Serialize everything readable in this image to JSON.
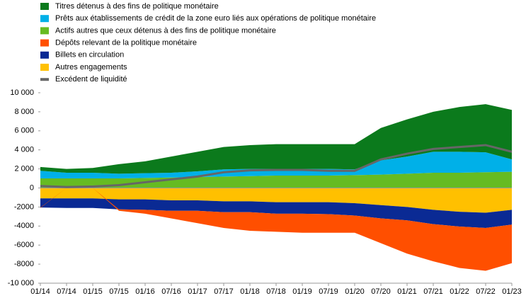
{
  "chart_data": {
    "type": "stacked-area",
    "x": [
      "01/14",
      "07/14",
      "01/15",
      "07/15",
      "01/16",
      "07/16",
      "01/17",
      "07/17",
      "01/18",
      "07/18",
      "01/19",
      "07/19",
      "01/20",
      "07/20",
      "01/21",
      "07/21",
      "01/22",
      "07/22",
      "01/23"
    ],
    "series": [
      {
        "name": "Titres détenus  à des fins de politique  monétaire",
        "color": "#0b7a1c",
        "values": [
          400,
          400,
          500,
          1000,
          1250,
          1700,
          2050,
          2350,
          2500,
          2600,
          2600,
          2600,
          2650,
          3400,
          3900,
          4200,
          4700,
          5050,
          5200
        ]
      },
      {
        "name": "Prêts aux établissements  de crédit de la zone euro liés aux opérations  de politique monétaire",
        "color": "#00b0e8",
        "values": [
          800,
          600,
          600,
          500,
          500,
          500,
          600,
          750,
          750,
          700,
          700,
          700,
          600,
          1500,
          1800,
          2200,
          2200,
          2100,
          1300
        ]
      },
      {
        "name": "Actifs autres que ceux détenus à des fins de politique monétaire",
        "color": "#66bb22",
        "values": [
          1000,
          1000,
          1000,
          1000,
          1050,
          1100,
          1150,
          1200,
          1250,
          1300,
          1300,
          1300,
          1350,
          1400,
          1500,
          1600,
          1600,
          1650,
          1700
        ]
      },
      {
        "name": "Dépôts  relevant de la politique monétaire",
        "color": "#ff4f00",
        "values": [
          -50,
          0,
          0,
          -150,
          -400,
          -800,
          -1300,
          -1650,
          -1950,
          -1900,
          -2000,
          -1950,
          -1800,
          -2600,
          -3500,
          -3900,
          -4350,
          -4500,
          -4050
        ]
      },
      {
        "name": "Billets en circulation",
        "color": "#0a2a94",
        "values": [
          -950,
          -1000,
          -1000,
          -1050,
          -1100,
          -1100,
          -1100,
          -1150,
          -1150,
          -1200,
          -1200,
          -1250,
          -1300,
          -1400,
          -1400,
          -1500,
          -1550,
          -1600,
          -1550
        ]
      },
      {
        "name": "Autres engagements",
        "color": "#ffc000",
        "values": [
          -1100,
          -1100,
          -1100,
          -1200,
          -1200,
          -1300,
          -1300,
          -1400,
          -1400,
          -1500,
          -1500,
          -1500,
          -1600,
          -1800,
          -2000,
          -2300,
          -2500,
          -2600,
          -2300
        ]
      },
      {
        "name": "Excédent  de liquidité",
        "color": "#666666",
        "type": "line",
        "values": [
          200,
          100,
          150,
          300,
          600,
          900,
          1200,
          1650,
          1850,
          1900,
          1900,
          1800,
          1800,
          3000,
          3600,
          4100,
          4300,
          4500,
          3800
        ]
      }
    ],
    "ylim": [
      -10000,
      10000
    ],
    "yticks": [
      {
        "value": 10000,
        "label": "10 000"
      },
      {
        "value": 8000,
        "label": "8 000"
      },
      {
        "value": 6000,
        "label": "6 000"
      },
      {
        "value": 4000,
        "label": "4 000"
      },
      {
        "value": 2000,
        "label": "2 000"
      },
      0,
      -2000,
      -4000,
      -6000,
      -8000,
      {
        "value": -10000,
        "label": "-10 000"
      }
    ],
    "grid": false
  }
}
